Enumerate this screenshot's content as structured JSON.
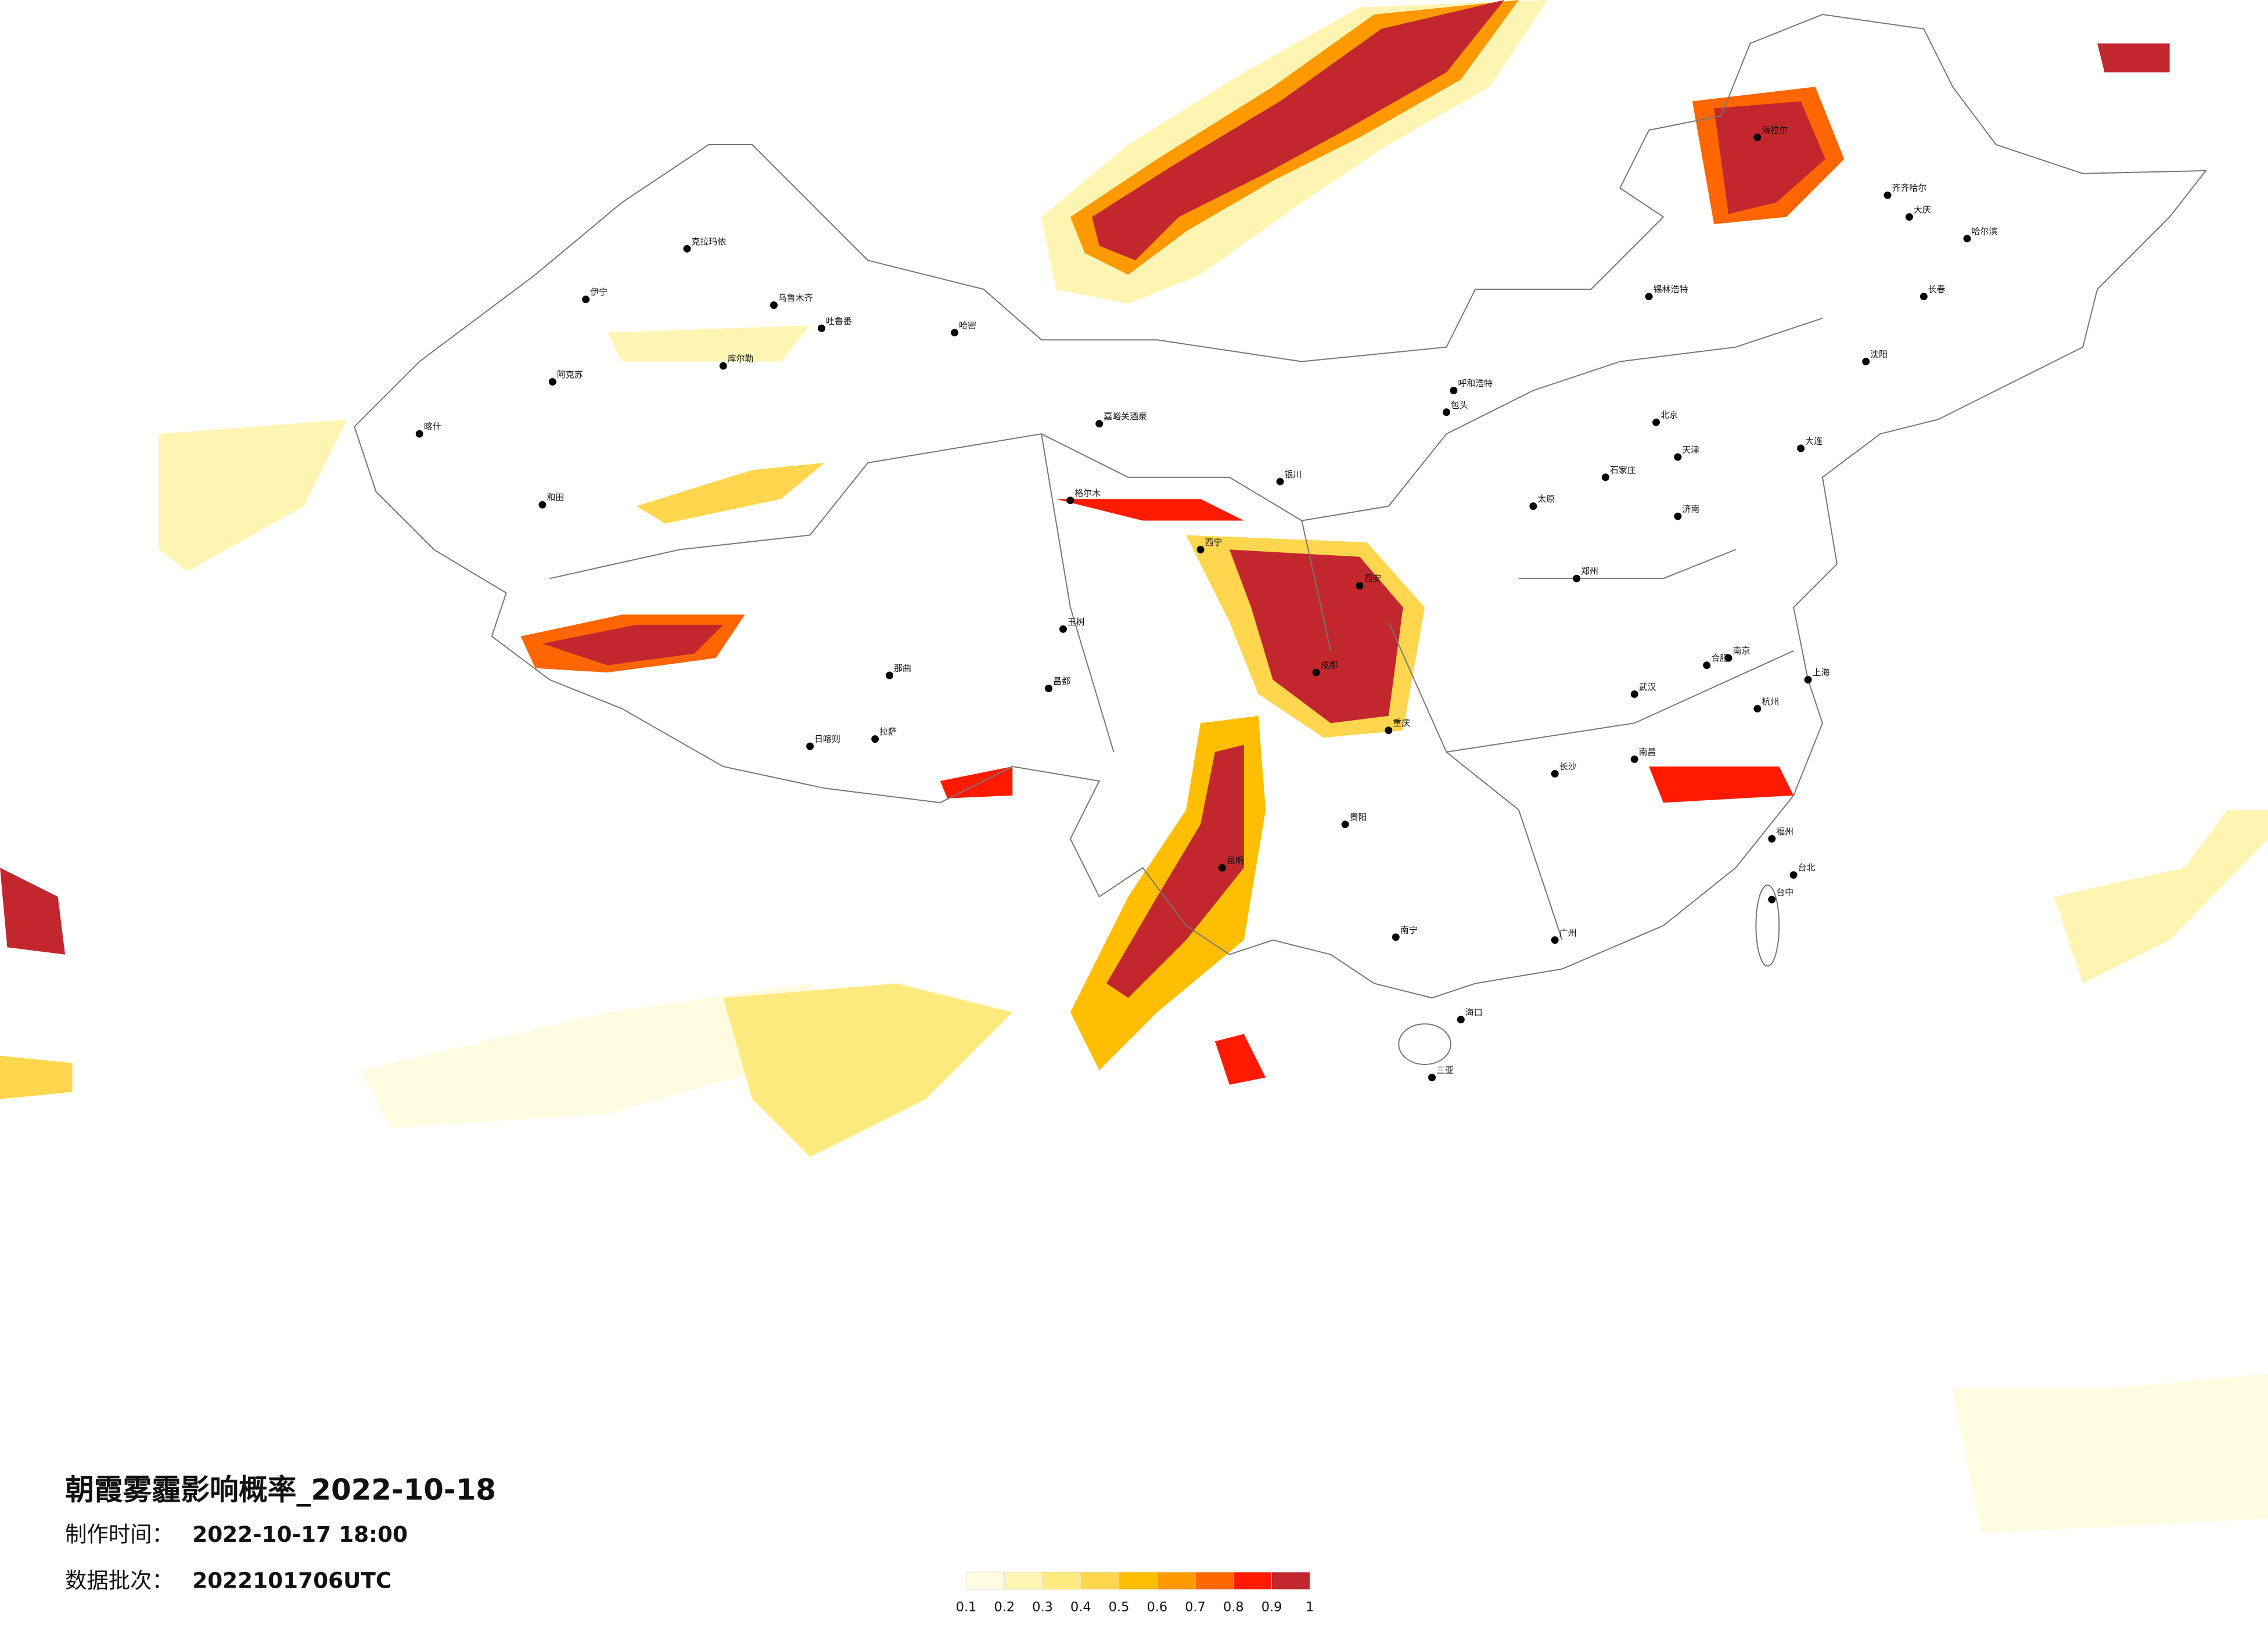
{
  "title": "朝霞雾霾影响概率_2022-10-18",
  "made_time": {
    "label": "制作时间：",
    "value": "2022-10-17 18:00"
  },
  "batch": {
    "label": "数据批次：",
    "value": "2022101706UTC"
  },
  "legend": {
    "colors": [
      "#fffbe0",
      "#fff5b3",
      "#ffea80",
      "#ffd64d",
      "#ffbf00",
      "#ff9900",
      "#ff6600",
      "#ff1a00",
      "#c1272d"
    ],
    "labels": [
      0.1,
      0.2,
      0.3,
      0.4,
      0.5,
      0.6,
      0.7,
      0.8,
      0.9,
      1
    ]
  },
  "cities": [
    "克拉玛依",
    "伊宁",
    "乌鲁木齐",
    "吐鲁番",
    "哈密",
    "阿克苏",
    "库尔勒",
    "喀什",
    "和田",
    "嘉峪关酒泉",
    "格尔木",
    "玉树",
    "拉萨",
    "日喀则",
    "那曲",
    "昌都",
    "西宁",
    "银川",
    "呼和浩特",
    "包头",
    "北京",
    "天津",
    "石家庄",
    "太原",
    "济南",
    "郑州",
    "西安",
    "成都",
    "重庆",
    "贵阳",
    "昆明",
    "南宁",
    "广州",
    "长沙",
    "武汉",
    "南京",
    "上海",
    "杭州",
    "福州",
    "台北",
    "台中",
    "海口",
    "三亚",
    "哈尔滨",
    "长春",
    "沈阳",
    "大连",
    "齐齐哈尔",
    "海拉尔",
    "锡林浩特",
    "大庆",
    "南昌",
    "合肥"
  ]
}
